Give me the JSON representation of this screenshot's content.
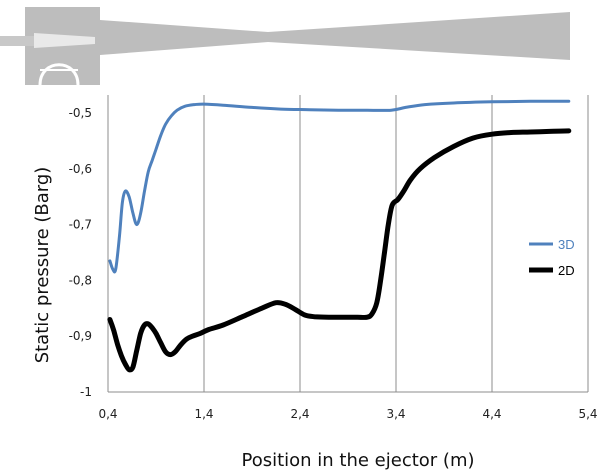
{
  "chart_data": {
    "type": "line",
    "xlabel": "Position in the ejector (m)",
    "ylabel": "Static pressure (Barg)",
    "xlim": [
      0.4,
      5.4
    ],
    "ylim": [
      -1,
      -0.5
    ],
    "xticks": [
      "0,4",
      "1,4",
      "2,4",
      "3,4",
      "4,4",
      "5,4"
    ],
    "yticks": [
      "-0,5",
      "-0,6",
      "-0,7",
      "-0,8",
      "-0,9",
      "-1"
    ],
    "grid": "vertical",
    "legend_position": "right",
    "series": [
      {
        "name": "3D",
        "color": "#4f81bd",
        "x": [
          0.42,
          0.45,
          0.48,
          0.52,
          0.55,
          0.58,
          0.62,
          0.66,
          0.7,
          0.74,
          0.78,
          0.82,
          0.86,
          0.9,
          0.95,
          1.0,
          1.06,
          1.12,
          1.2,
          1.3,
          1.4,
          1.6,
          1.9,
          2.2,
          2.5,
          2.8,
          3.1,
          3.35,
          3.5,
          3.7,
          4.0,
          4.4,
          4.8,
          5.2
        ],
        "y": [
          -0.765,
          -0.78,
          -0.78,
          -0.72,
          -0.66,
          -0.64,
          -0.65,
          -0.68,
          -0.7,
          -0.68,
          -0.64,
          -0.605,
          -0.585,
          -0.565,
          -0.54,
          -0.52,
          -0.505,
          -0.495,
          -0.488,
          -0.485,
          -0.484,
          -0.486,
          -0.49,
          -0.493,
          -0.494,
          -0.495,
          -0.495,
          -0.495,
          -0.49,
          -0.485,
          -0.482,
          -0.48,
          -0.479,
          -0.479
        ]
      },
      {
        "name": "2D",
        "color": "#000000",
        "x": [
          0.42,
          0.46,
          0.5,
          0.54,
          0.58,
          0.62,
          0.66,
          0.7,
          0.74,
          0.78,
          0.82,
          0.86,
          0.9,
          0.95,
          1.0,
          1.05,
          1.1,
          1.16,
          1.22,
          1.28,
          1.36,
          1.45,
          1.6,
          1.8,
          2.0,
          2.15,
          2.25,
          2.35,
          2.45,
          2.55,
          2.7,
          2.9,
          3.0,
          3.1,
          3.15,
          3.2,
          3.24,
          3.28,
          3.32,
          3.36,
          3.42,
          3.48,
          3.55,
          3.65,
          3.8,
          4.0,
          4.2,
          4.4,
          4.6,
          4.8,
          5.0,
          5.2
        ],
        "y": [
          -0.87,
          -0.89,
          -0.915,
          -0.935,
          -0.95,
          -0.96,
          -0.955,
          -0.925,
          -0.895,
          -0.88,
          -0.878,
          -0.885,
          -0.895,
          -0.912,
          -0.928,
          -0.933,
          -0.928,
          -0.915,
          -0.905,
          -0.9,
          -0.895,
          -0.888,
          -0.88,
          -0.865,
          -0.85,
          -0.84,
          -0.843,
          -0.852,
          -0.862,
          -0.865,
          -0.866,
          -0.866,
          -0.866,
          -0.866,
          -0.86,
          -0.84,
          -0.8,
          -0.75,
          -0.7,
          -0.665,
          -0.655,
          -0.64,
          -0.62,
          -0.6,
          -0.58,
          -0.56,
          -0.545,
          -0.538,
          -0.535,
          -0.534,
          -0.533,
          -0.532
        ]
      }
    ]
  }
}
